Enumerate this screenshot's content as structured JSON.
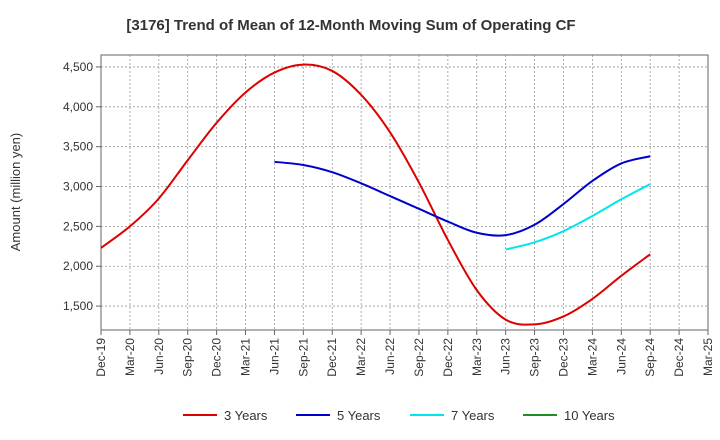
{
  "chart_data": {
    "type": "line",
    "title": "[3176]  Trend of Mean of 12-Month Moving Sum of Operating CF",
    "ylabel": "Amount (million yen)",
    "xlabel": "",
    "ylim": [
      1200,
      4650
    ],
    "yticks": [
      1500,
      2000,
      2500,
      3000,
      3500,
      4000,
      4500
    ],
    "ytick_labels": [
      "1,500",
      "2,000",
      "2,500",
      "3,000",
      "3,500",
      "4,000",
      "4,500"
    ],
    "x_categories": [
      "Dec-19",
      "Mar-20",
      "Jun-20",
      "Sep-20",
      "Dec-20",
      "Mar-21",
      "Jun-21",
      "Sep-21",
      "Dec-21",
      "Mar-22",
      "Jun-22",
      "Sep-22",
      "Dec-22",
      "Mar-23",
      "Jun-23",
      "Sep-23",
      "Dec-23",
      "Mar-24",
      "Jun-24",
      "Sep-24",
      "Dec-24",
      "Mar-25"
    ],
    "x_tick_labels": [
      "Dec-19",
      "Mar-20",
      "Jun-20",
      "Sep-20",
      "Dec-20",
      "Mar-21",
      "Jun-21",
      "Sep-21",
      "Dec-21",
      "Mar-22",
      "Jun-22",
      "Sep-22",
      "Dec-22",
      "Mar-23",
      "Jun-23",
      "Sep-23",
      "Dec-23",
      "Mar-24",
      "Jun-24",
      "Sep-24",
      "Dec-24",
      "Mar-25"
    ],
    "grid": true,
    "legend_position": "bottom",
    "series": [
      {
        "name": "3 Years",
        "color": "#dd0000",
        "points": [
          [
            "Dec-19",
            2230
          ],
          [
            "Mar-20",
            2500
          ],
          [
            "Jun-20",
            2850
          ],
          [
            "Sep-20",
            3330
          ],
          [
            "Dec-20",
            3800
          ],
          [
            "Mar-21",
            4180
          ],
          [
            "Jun-21",
            4430
          ],
          [
            "Sep-21",
            4530
          ],
          [
            "Dec-21",
            4450
          ],
          [
            "Mar-22",
            4150
          ],
          [
            "Jun-22",
            3680
          ],
          [
            "Sep-22",
            3050
          ],
          [
            "Dec-22",
            2330
          ],
          [
            "Mar-23",
            1700
          ],
          [
            "Jun-23",
            1330
          ],
          [
            "Sep-23",
            1270
          ],
          [
            "Dec-23",
            1370
          ],
          [
            "Mar-24",
            1590
          ],
          [
            "Jun-24",
            1880
          ],
          [
            "Sep-24",
            2150
          ]
        ]
      },
      {
        "name": "5 Years",
        "color": "#0000cc",
        "points": [
          [
            "Jun-21",
            3310
          ],
          [
            "Sep-21",
            3270
          ],
          [
            "Dec-21",
            3180
          ],
          [
            "Mar-22",
            3040
          ],
          [
            "Jun-22",
            2880
          ],
          [
            "Sep-22",
            2720
          ],
          [
            "Dec-22",
            2560
          ],
          [
            "Mar-23",
            2420
          ],
          [
            "Jun-23",
            2390
          ],
          [
            "Sep-23",
            2520
          ],
          [
            "Dec-23",
            2780
          ],
          [
            "Mar-24",
            3070
          ],
          [
            "Jun-24",
            3290
          ],
          [
            "Sep-24",
            3380
          ]
        ]
      },
      {
        "name": "7 Years",
        "color": "#00e5ee",
        "points": [
          [
            "Jun-23",
            2210
          ],
          [
            "Sep-23",
            2300
          ],
          [
            "Dec-23",
            2440
          ],
          [
            "Mar-24",
            2630
          ],
          [
            "Jun-24",
            2840
          ],
          [
            "Sep-24",
            3030
          ]
        ]
      },
      {
        "name": "10 Years",
        "color": "#228b22",
        "points": []
      }
    ]
  }
}
